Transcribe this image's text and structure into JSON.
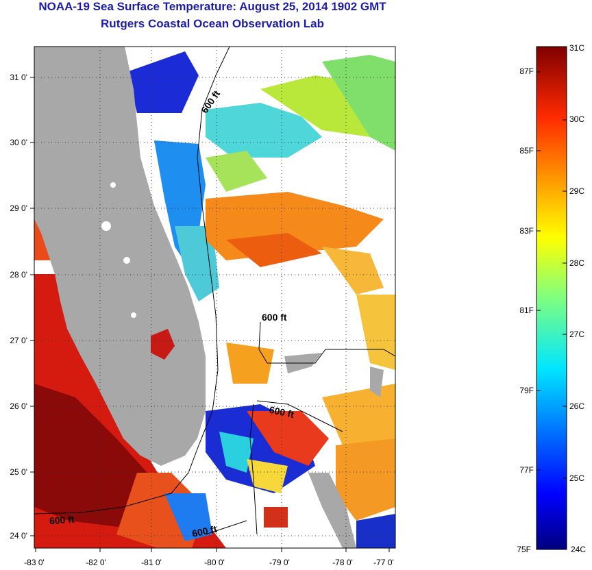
{
  "header": {
    "title": "NOAA-19 Sea Surface Temperature:  August 25, 2014 1902 GMT",
    "subtitle": "Rutgers Coastal Ocean Observation Lab"
  },
  "map": {
    "lon_range": [
      -83,
      -76.8
    ],
    "lat_range": [
      23.8,
      31.4
    ],
    "lon_ticks": [
      "-83 0'",
      "-82 0'",
      "-81 0'",
      "-80 0'",
      "-79 0'",
      "-78 0'",
      "-77 0'"
    ],
    "lat_ticks": [
      "31 0'",
      "30 0'",
      "29 0'",
      "28 0'",
      "27 0'",
      "26 0'",
      "25 0'",
      "24 0'"
    ],
    "contour_label": "600 ft",
    "land_color": "#a8a8a8",
    "grid": "dotted"
  },
  "colorbar": {
    "min_c": 24,
    "max_c": 31,
    "celsius_labels": [
      "31C",
      "30C",
      "29C",
      "28C",
      "27C",
      "26C",
      "25C",
      "24C"
    ],
    "fahrenheit_labels": [
      "87F",
      "85F",
      "83F",
      "81F",
      "79F",
      "77F",
      "75F"
    ],
    "colormap": "jet"
  }
}
